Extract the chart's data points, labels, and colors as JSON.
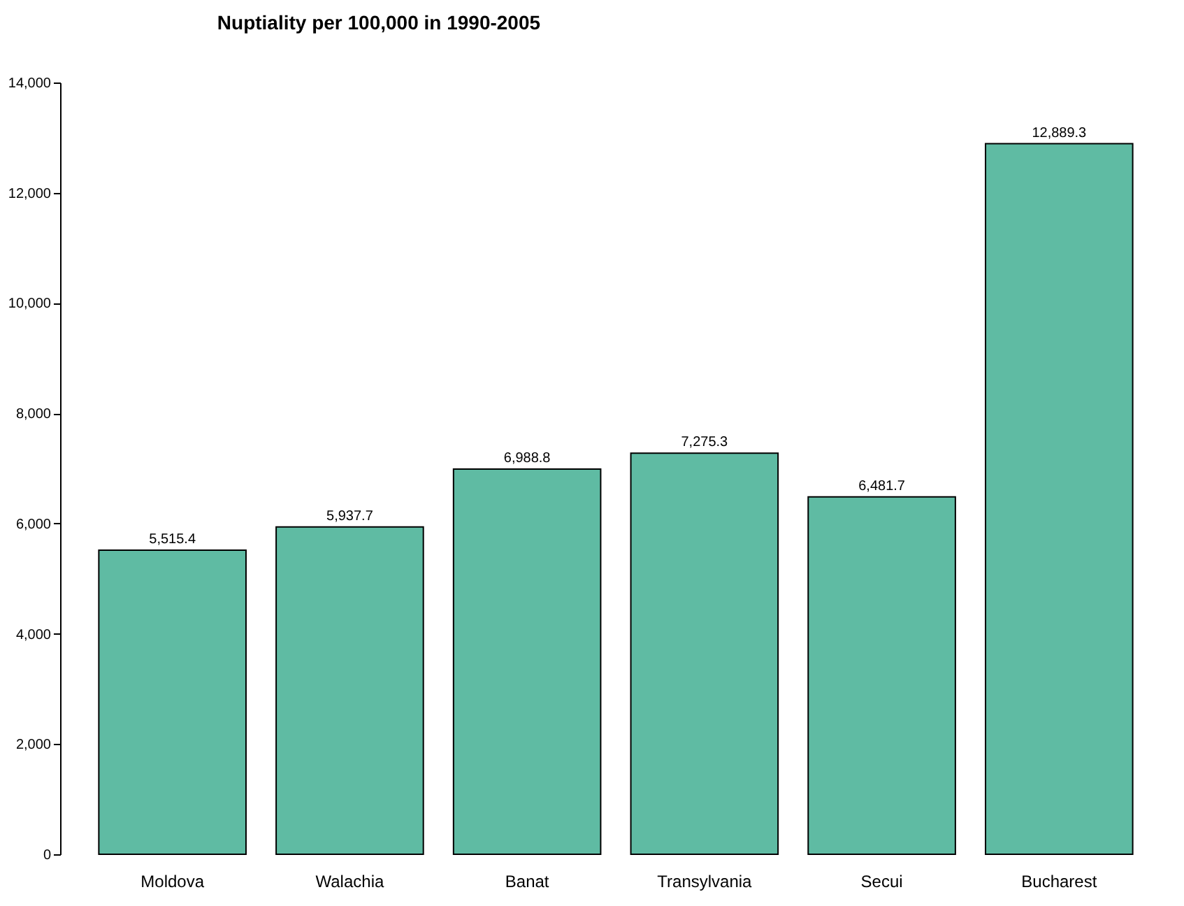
{
  "chart_data": {
    "type": "bar",
    "title": "Nuptiality per 100,000 in 1990-2005",
    "categories": [
      "Moldova",
      "Walachia",
      "Banat",
      "Transylvania",
      "Secui",
      "Bucharest"
    ],
    "values": [
      5515.4,
      5937.7,
      6988.8,
      7275.3,
      6481.7,
      12889.3
    ],
    "value_labels": [
      "5,515.4",
      "5,937.7",
      "6,988.8",
      "7,275.3",
      "6,481.7",
      "12,889.3"
    ],
    "color": "#5fbba3",
    "ylim": [
      0,
      14000
    ],
    "yticks": [
      0,
      {
        "value": 2000,
        "label": "2,000"
      },
      {
        "value": 4000,
        "label": "4,000"
      },
      {
        "value": 6000,
        "label": "6,000"
      },
      {
        "value": 8000,
        "label": "8,000"
      },
      {
        "value": 10000,
        "label": "10,000"
      },
      {
        "value": 12000,
        "label": "12,000"
      },
      {
        "value": 14000,
        "label": "14,000"
      }
    ],
    "grid": false
  }
}
